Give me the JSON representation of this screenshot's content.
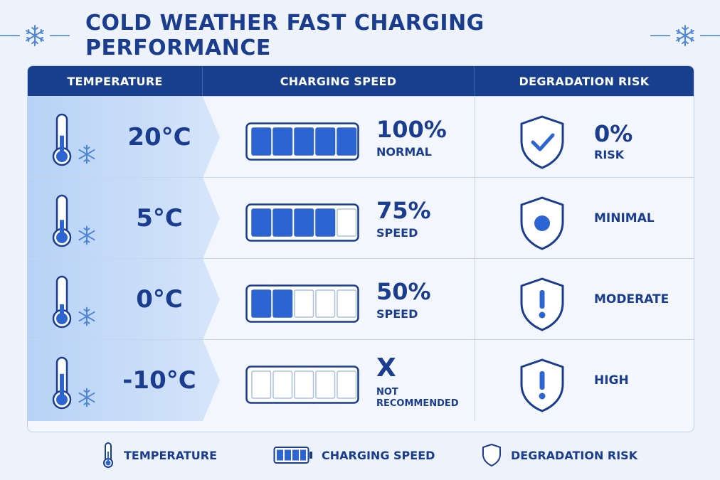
{
  "title": "COLD WEATHER FAST CHARGING PERFORMANCE",
  "columns": {
    "temperature": "TEMPERATURE",
    "charging_speed": "CHARGING SPEED",
    "degradation_risk": "DEGRADATION RISK"
  },
  "rows": [
    {
      "temp": "20°C",
      "thermo_fill": 0.55,
      "battery_filled": 5,
      "battery_total": 5,
      "speed_value": "100%",
      "speed_label": "NORMAL",
      "speed_x": "",
      "risk_icon": "shield-check-icon",
      "risk_value": "0%",
      "risk_sub": "RISK",
      "risk_word": ""
    },
    {
      "temp": "5°C",
      "thermo_fill": 0.45,
      "battery_filled": 4,
      "battery_total": 5,
      "speed_value": "75%",
      "speed_label": "SPEED",
      "speed_x": "",
      "risk_icon": "shield-dot-icon",
      "risk_value": "",
      "risk_sub": "",
      "risk_word": "MINIMAL"
    },
    {
      "temp": "0°C",
      "thermo_fill": 0.35,
      "battery_filled": 2,
      "battery_total": 5,
      "speed_value": "50%",
      "speed_label": "SPEED",
      "speed_x": "",
      "risk_icon": "shield-exclamation-icon",
      "risk_value": "",
      "risk_sub": "",
      "risk_word": "MODERATE"
    },
    {
      "temp": "-10°C",
      "thermo_fill": 0.7,
      "battery_filled": 0,
      "battery_total": 5,
      "speed_value": "",
      "speed_label": "",
      "speed_x": "X",
      "speed_note": "NOT RECOMMENDED",
      "risk_icon": "shield-exclamation-icon",
      "risk_value": "",
      "risk_sub": "",
      "risk_word": "HIGH"
    }
  ],
  "legend": {
    "temperature": "TEMPERATURE",
    "charging_speed": "CHARGING SPEED",
    "degradation_risk": "DEGRADATION RISK"
  },
  "colors": {
    "navy": "#173f8e",
    "text": "#1a3d8f",
    "fill": "#2c64d2",
    "band_top": "#b9d4f7",
    "band_bottom": "#dde9fa"
  }
}
